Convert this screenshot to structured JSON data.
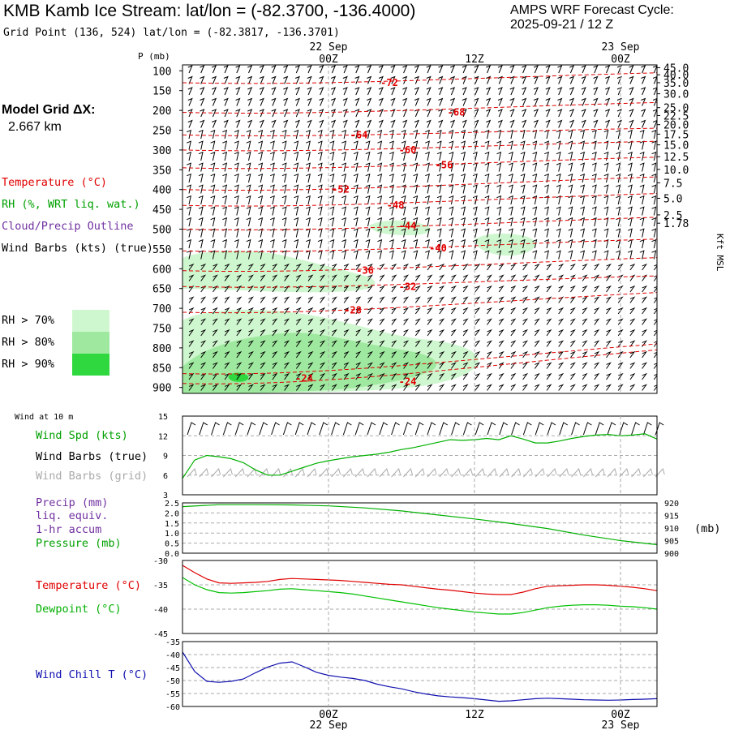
{
  "header": {
    "title": "KMB Kamb Ice Stream:  lat/lon = (-82.3700, -136.4000)",
    "grid_point": "Grid Point (136, 524) lat/lon = (-82.3817, -136.3701)",
    "forecast_cycle_label": "AMPS WRF Forecast Cycle:",
    "forecast_cycle_value": "2025-09-21 / 12  Z"
  },
  "model_grid": {
    "label": "Model Grid ΔX:",
    "value": "2.667 km"
  },
  "legend": {
    "temperature": "Temperature (°C)",
    "rh": "RH (%, WRT liq. wat.)",
    "cloud": "Cloud/Precip Outline",
    "wind_barbs": "Wind Barbs (kts) (true)",
    "rh70": "RH > 70%",
    "rh80": "RH > 80%",
    "rh90": "RH > 90%"
  },
  "colors": {
    "temperature": "#e00000",
    "rh": "#00a000",
    "cloud": "#7030a0",
    "rh70": "#cff7cf",
    "rh80": "#9fe89f",
    "rh90": "#2fd83f",
    "wind_chill": "#1010b0",
    "grid": "#aaaaaa"
  },
  "panel_labels": {
    "wind10": "Wind at 10 m",
    "wind_spd": "Wind Spd (kts)",
    "wind_barbs_true": "Wind Barbs (true)",
    "wind_barbs_grid": "Wind Barbs (grid)",
    "precip": "Precip (mm)",
    "liq_equiv": "liq. equiv.",
    "accum": "1-hr accum",
    "pressure": "Pressure (mb)",
    "pressure_unit": "(mb)",
    "temp": "Temperature (°C)",
    "dewpoint": "Dewpoint (°C)",
    "windchill": "Wind Chill T (°C)"
  },
  "chart_data": [
    {
      "type": "cross-section",
      "name": "time-height",
      "ylabel": "P (mb)",
      "ylabel_right": "Kft MSL",
      "p_ticks": [
        100,
        150,
        200,
        250,
        300,
        350,
        400,
        450,
        500,
        550,
        600,
        650,
        700,
        750,
        800,
        850,
        900
      ],
      "kft_ticks": [
        "45.0",
        "40.0",
        "35.0",
        "30.0",
        "25.0",
        "22.5",
        "20.0",
        "17.5",
        "15.0",
        "12.5",
        "10.0",
        "7.5",
        "5.0",
        "2.5",
        "1.78"
      ],
      "kft_pressures": [
        92,
        110,
        130,
        158,
        193,
        213,
        236,
        260,
        287,
        317,
        349,
        383,
        422,
        464,
        485
      ],
      "time_ticks": [
        {
          "hours": 9,
          "label": "00Z",
          "date": "22 Sep"
        },
        {
          "hours": 21,
          "label": "12Z",
          "date": ""
        },
        {
          "hours": 33,
          "label": "00Z",
          "date": "23 Sep"
        }
      ],
      "time_range_hours": [
        -3,
        36
      ],
      "isotherms": [
        {
          "label": "-72",
          "p_start": 130,
          "p_end": 105,
          "label_hours": 14,
          "label_p": 130
        },
        {
          "label": "-68",
          "p_start": 205,
          "p_end": 180,
          "label_hours": 19.5,
          "label_p": 205
        },
        {
          "label": "-64",
          "p_start": 262,
          "p_end": 245,
          "label_hours": 11.5,
          "label_p": 262
        },
        {
          "label": "-60",
          "p_start": 300,
          "p_end": 278,
          "label_hours": 15.5,
          "label_p": 300
        },
        {
          "label": "-56",
          "p_start": 345,
          "p_end": 318,
          "label_hours": 18.5,
          "label_p": 338
        },
        {
          "label": "-52",
          "p_start": 400,
          "p_end": 368,
          "label_hours": 10,
          "label_p": 400
        },
        {
          "label": "-48",
          "p_start": 440,
          "p_end": 410,
          "label_hours": 14.5,
          "label_p": 440
        },
        {
          "label": "-44",
          "p_start": 500,
          "p_end": 470,
          "label_hours": 15.5,
          "label_p": 492
        },
        {
          "label": "-40",
          "p_start": 555,
          "p_end": 525,
          "label_hours": 18,
          "label_p": 548
        },
        {
          "label": "-36",
          "p_start": 605,
          "p_end": 572,
          "label_hours": 12,
          "label_p": 605
        },
        {
          "label": "-32",
          "p_start": 645,
          "p_end": 618,
          "label_hours": 15.5,
          "label_p": 645
        },
        {
          "label": "-28",
          "p_start": 710,
          "p_end": 660,
          "label_hours": 11,
          "label_p": 705
        },
        {
          "label": "-24",
          "p_start": 865,
          "p_end": 790,
          "label_hours": 7,
          "label_p": 877
        },
        {
          "label": "-24",
          "p_start": 890,
          "p_end": 805,
          "label_hours": 15.5,
          "label_p": 885
        }
      ],
      "rh_regions": [
        {
          "level": 70,
          "shape": "lower",
          "desc": "RH>70 lower blob"
        },
        {
          "level": 70,
          "shape": "mid",
          "desc": "RH>70 mid layer"
        },
        {
          "level": 70,
          "shape": "upper",
          "desc": "RH>70 upper patch"
        },
        {
          "level": 80,
          "shape": "lower",
          "desc": "RH>80 core"
        },
        {
          "level": 90,
          "shape": "lower",
          "desc": "RH>90 spot"
        }
      ]
    },
    {
      "type": "line",
      "name": "wind10m",
      "ylim": [
        3,
        15
      ],
      "yticks": [
        3,
        6,
        9,
        12,
        15
      ],
      "series": [
        {
          "name": "Wind Spd (kts)",
          "color": "#00b000",
          "x": [
            -3,
            -2,
            -1,
            0,
            1,
            2,
            3,
            4,
            5,
            6,
            7,
            8,
            9,
            10,
            11,
            12,
            13,
            14,
            15,
            16,
            17,
            18,
            19,
            20,
            21,
            22,
            23,
            24,
            25,
            26,
            27,
            28,
            29,
            30,
            31,
            32,
            33,
            34,
            35,
            36
          ],
          "y": [
            5.5,
            8.3,
            9.0,
            8.8,
            8.5,
            7.9,
            6.8,
            6.0,
            6.0,
            6.6,
            7.2,
            7.8,
            8.2,
            8.5,
            8.8,
            9.0,
            9.2,
            9.5,
            9.9,
            10.2,
            10.6,
            11.0,
            11.4,
            11.3,
            11.4,
            11.6,
            11.4,
            12.0,
            11.5,
            10.9,
            10.9,
            11.2,
            11.6,
            11.9,
            12.1,
            12.2,
            12.0,
            12.1,
            12.3,
            11.5
          ]
        }
      ]
    },
    {
      "type": "line",
      "name": "precip-pressure",
      "ylim": [
        0.0,
        2.5
      ],
      "yticks": [
        "0.0",
        "0.5",
        "1.0",
        "1.5",
        "2.0",
        "2.5"
      ],
      "y2lim": [
        900,
        920
      ],
      "y2ticks": [
        900,
        905,
        910,
        915,
        920
      ],
      "series": [
        {
          "name": "Pressure (mb)",
          "color": "#00b000",
          "axis": "right",
          "x": [
            -3,
            0,
            3,
            6,
            9,
            12,
            15,
            18,
            21,
            24,
            27,
            30,
            33,
            36
          ],
          "y": [
            918.5,
            919.3,
            919.3,
            919.2,
            918.8,
            918.0,
            916.8,
            915.2,
            913.6,
            911.8,
            909.8,
            907.2,
            905.0,
            903.4
          ]
        }
      ]
    },
    {
      "type": "line",
      "name": "temperature-dewpoint",
      "ylim": [
        -45,
        -30
      ],
      "yticks": [
        -45,
        -40,
        -35,
        -30
      ],
      "series": [
        {
          "name": "Temperature (°C)",
          "color": "#e00000",
          "x": [
            -3,
            -2,
            -1,
            0,
            1,
            2,
            3,
            4,
            5,
            6,
            7,
            8,
            9,
            10,
            11,
            12,
            13,
            14,
            15,
            16,
            17,
            18,
            19,
            20,
            21,
            22,
            23,
            24,
            25,
            26,
            27,
            28,
            29,
            30,
            31,
            32,
            33,
            34,
            35,
            36
          ],
          "y": [
            -31,
            -32.5,
            -33.8,
            -34.6,
            -34.7,
            -34.6,
            -34.5,
            -34.3,
            -33.9,
            -33.7,
            -33.8,
            -33.9,
            -34.0,
            -34.1,
            -34.3,
            -34.5,
            -34.7,
            -34.9,
            -35.0,
            -35.3,
            -35.6,
            -35.9,
            -36.1,
            -36.4,
            -36.7,
            -36.9,
            -37.0,
            -37.0,
            -36.5,
            -35.8,
            -35.3,
            -35.2,
            -35.1,
            -35.0,
            -35.0,
            -35.1,
            -35.3,
            -35.5,
            -35.8,
            -36.2
          ]
        },
        {
          "name": "Dewpoint (°C)",
          "color": "#00c000",
          "x": [
            -3,
            -2,
            -1,
            0,
            1,
            2,
            3,
            4,
            5,
            6,
            7,
            8,
            9,
            10,
            11,
            12,
            13,
            14,
            15,
            16,
            17,
            18,
            19,
            20,
            21,
            22,
            23,
            24,
            25,
            26,
            27,
            28,
            29,
            30,
            31,
            32,
            33,
            34,
            35,
            36
          ],
          "y": [
            -33.5,
            -35,
            -36.0,
            -36.6,
            -36.7,
            -36.6,
            -36.4,
            -36.2,
            -35.9,
            -35.8,
            -36.0,
            -36.2,
            -36.4,
            -36.6,
            -36.9,
            -37.3,
            -37.7,
            -38.1,
            -38.5,
            -38.9,
            -39.3,
            -39.7,
            -40.0,
            -40.3,
            -40.6,
            -40.8,
            -41.0,
            -41.0,
            -40.7,
            -40.2,
            -39.7,
            -39.4,
            -39.2,
            -39.1,
            -39.1,
            -39.2,
            -39.4,
            -39.5,
            -39.7,
            -40.0
          ]
        }
      ]
    },
    {
      "type": "line",
      "name": "windchill",
      "ylim": [
        -60,
        -35
      ],
      "yticks": [
        -60,
        -55,
        -50,
        -45,
        -40,
        -35
      ],
      "series": [
        {
          "name": "Wind Chill T (°C)",
          "color": "#1010b0",
          "x": [
            -3,
            -2,
            -1,
            0,
            1,
            2,
            3,
            4,
            5,
            6,
            7,
            8,
            9,
            10,
            11,
            12,
            13,
            14,
            15,
            16,
            17,
            18,
            19,
            20,
            21,
            22,
            23,
            24,
            25,
            26,
            27,
            28,
            29,
            30,
            31,
            32,
            33,
            34,
            35,
            36
          ],
          "y": [
            -39,
            -46.5,
            -50.3,
            -50.7,
            -50.3,
            -49.4,
            -47,
            -44.8,
            -43.3,
            -42.8,
            -44.7,
            -46.8,
            -48.0,
            -48.7,
            -49.2,
            -50.0,
            -51.4,
            -52.4,
            -53.2,
            -54.3,
            -55.2,
            -55.9,
            -56.3,
            -56.6,
            -57.0,
            -57.5,
            -58.0,
            -57.8,
            -57.4,
            -57.0,
            -56.8,
            -57.0,
            -57.2,
            -57.4,
            -57.5,
            -57.6,
            -57.5,
            -57.3,
            -57.2,
            -57.0
          ]
        }
      ]
    }
  ],
  "bottom_axis": {
    "labels": [
      "00Z",
      "12Z",
      "00Z"
    ],
    "dates": [
      "22 Sep",
      "",
      "23 Sep"
    ]
  }
}
